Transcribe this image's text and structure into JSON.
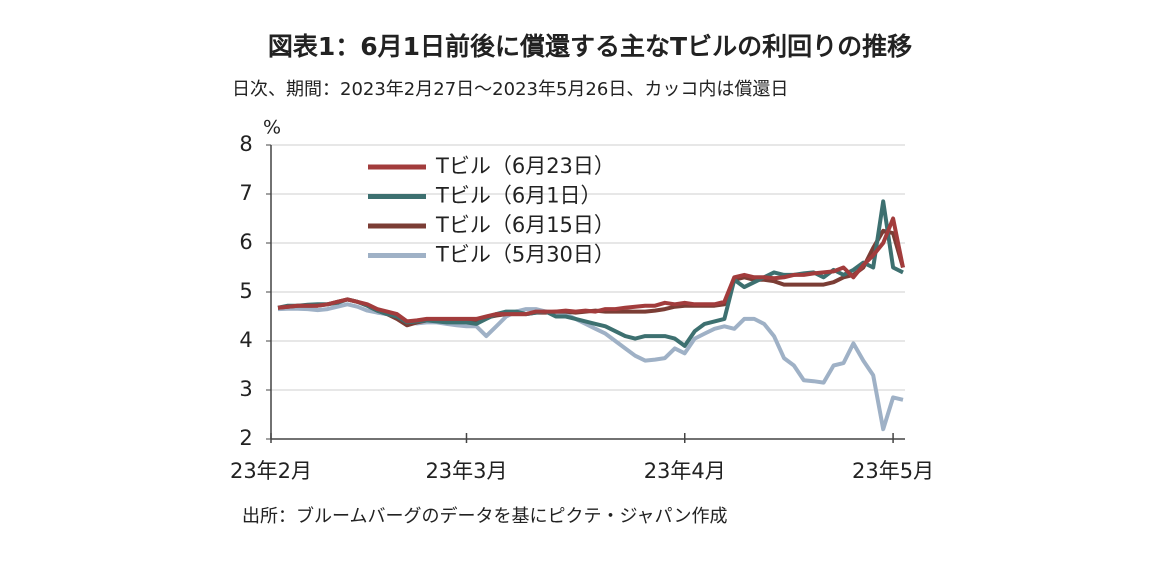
{
  "chart_data": {
    "type": "line",
    "title": "図表1：6月1日前後に償還する主なTビルの利回りの推移",
    "subtitle": "日次、期間：2023年2月27日～2023年5月26日、カッコ内は償還日",
    "y_label": "%",
    "note": "出所：ブルームバーグのデータを基にピクテ・ジャパン作成",
    "categories": [
      "23年2月",
      null,
      null,
      null,
      null,
      null,
      null,
      null,
      null,
      null,
      null,
      null,
      null,
      null,
      null,
      null,
      null,
      null,
      null,
      "23年3月",
      null,
      null,
      null,
      null,
      null,
      null,
      null,
      null,
      null,
      null,
      null,
      null,
      null,
      null,
      null,
      null,
      null,
      null,
      null,
      null,
      null,
      "23年4月",
      null,
      null,
      null,
      null,
      null,
      null,
      null,
      null,
      null,
      null,
      null,
      null,
      null,
      null,
      null,
      null,
      null,
      null,
      null,
      null,
      "23年5月",
      null
    ],
    "series": [
      {
        "name": "Tビル（6月23日）",
        "color": "#a23c3c",
        "values": [
          4.68,
          4.7,
          4.72,
          4.72,
          4.72,
          4.75,
          4.8,
          4.85,
          4.8,
          4.75,
          4.65,
          4.6,
          4.55,
          4.4,
          4.42,
          4.45,
          4.45,
          4.45,
          4.45,
          4.45,
          4.45,
          4.5,
          4.55,
          4.55,
          4.55,
          4.55,
          4.6,
          4.6,
          4.6,
          4.62,
          4.6,
          4.62,
          4.6,
          4.65,
          4.65,
          4.68,
          4.7,
          4.72,
          4.72,
          4.78,
          4.75,
          4.78,
          4.75,
          4.75,
          4.75,
          4.8,
          5.3,
          5.35,
          5.3,
          5.3,
          5.28,
          5.3,
          5.35,
          5.35,
          5.38,
          5.4,
          5.42,
          5.5,
          5.3,
          5.55,
          5.75,
          6.0,
          6.5,
          5.5
        ]
      },
      {
        "name": "Tビル（6月1日）",
        "color": "#3d7070",
        "values": [
          4.68,
          4.72,
          4.72,
          4.74,
          4.75,
          4.75,
          4.78,
          4.85,
          4.8,
          4.72,
          4.62,
          4.55,
          4.5,
          4.38,
          4.4,
          4.42,
          4.4,
          4.38,
          4.38,
          4.38,
          4.35,
          4.45,
          4.55,
          4.6,
          4.6,
          4.55,
          4.58,
          4.6,
          4.5,
          4.5,
          4.45,
          4.4,
          4.35,
          4.3,
          4.2,
          4.1,
          4.05,
          4.1,
          4.1,
          4.1,
          4.05,
          3.9,
          4.2,
          4.35,
          4.4,
          4.45,
          5.25,
          5.1,
          5.2,
          5.3,
          5.4,
          5.35,
          5.35,
          5.38,
          5.4,
          5.3,
          5.45,
          5.35,
          5.45,
          5.6,
          5.5,
          6.85,
          5.5,
          5.4
        ]
      },
      {
        "name": "Tビル（6月15日）",
        "color": "#7b3d35",
        "values": [
          4.68,
          4.7,
          4.72,
          4.72,
          4.72,
          4.75,
          4.8,
          4.85,
          4.8,
          4.72,
          4.62,
          4.55,
          4.45,
          4.32,
          4.38,
          4.42,
          4.42,
          4.42,
          4.42,
          4.42,
          4.42,
          4.48,
          4.52,
          4.55,
          4.55,
          4.55,
          4.58,
          4.58,
          4.6,
          4.6,
          4.58,
          4.6,
          4.62,
          4.6,
          4.6,
          4.6,
          4.6,
          4.6,
          4.62,
          4.65,
          4.7,
          4.72,
          4.72,
          4.72,
          4.72,
          4.75,
          5.25,
          5.3,
          5.25,
          5.25,
          5.22,
          5.15,
          5.15,
          5.15,
          5.15,
          5.15,
          5.2,
          5.3,
          5.35,
          5.5,
          5.9,
          6.25,
          6.2,
          5.5
        ]
      },
      {
        "name": "Tビル（5月30日）",
        "color": "#9fb1c6",
        "values": [
          4.65,
          4.66,
          4.66,
          4.65,
          4.63,
          4.65,
          4.7,
          4.75,
          4.7,
          4.62,
          4.58,
          4.55,
          4.5,
          4.38,
          4.36,
          4.38,
          4.38,
          4.35,
          4.32,
          4.3,
          4.3,
          4.1,
          4.3,
          4.5,
          4.6,
          4.65,
          4.65,
          4.6,
          4.58,
          4.55,
          4.45,
          4.35,
          4.25,
          4.15,
          4.0,
          3.85,
          3.7,
          3.6,
          3.62,
          3.65,
          3.85,
          3.75,
          4.05,
          4.15,
          4.25,
          4.3,
          4.25,
          4.45,
          4.45,
          4.35,
          4.1,
          3.65,
          3.5,
          3.2,
          3.18,
          3.15,
          3.5,
          3.55,
          3.95,
          3.6,
          3.3,
          2.2,
          2.85,
          2.8
        ]
      }
    ],
    "ylim": [
      2,
      8
    ],
    "yticks": [
      2,
      3,
      4,
      5,
      6,
      7,
      8
    ],
    "grid": true,
    "legend": "upper left"
  }
}
